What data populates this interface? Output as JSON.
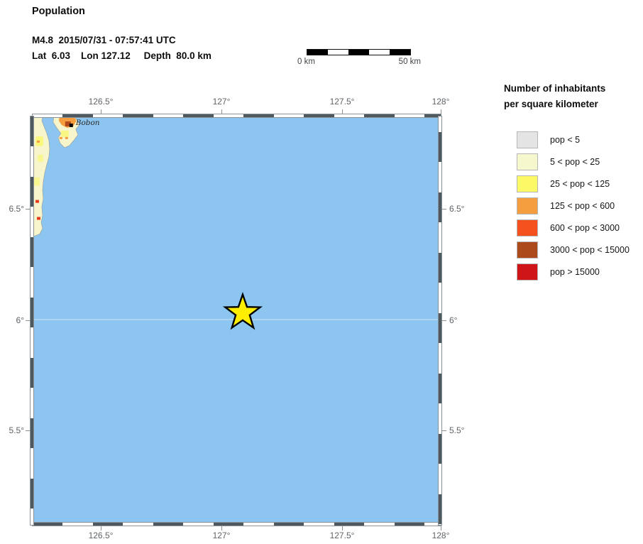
{
  "header": {
    "title": "Population",
    "event_line": "M4.8  2015/07/31 - 07:57:41 UTC",
    "location_line": "Lat  6.03    Lon 127.12     Depth  80.0 km"
  },
  "scale_bar": {
    "start_label": "0 km",
    "end_label": "50 km",
    "segment_colors": [
      "#000000",
      "#ffffff",
      "#000000",
      "#ffffff",
      "#000000"
    ]
  },
  "map": {
    "ocean_color": "#8bc5f0",
    "land_color": "#f7f5cc",
    "land_patch_yellow": "#f9f768",
    "land_patch_orange": "#f59e3f",
    "land_patch_red": "#e8391c",
    "land_patch_brown": "#b04a1a",
    "place_label": "Bobon",
    "epicenter": {
      "lat": "6.03",
      "lon": "127.12",
      "marker": "star-icon",
      "marker_fill": "#ffee00",
      "marker_outline": "#000000"
    },
    "axis": {
      "top": [
        "126.5°",
        "127°",
        "127.5°",
        "128°"
      ],
      "bottom": [
        "126.5°",
        "127°",
        "127.5°",
        "128°"
      ],
      "left": [
        "6.5°",
        "6°",
        "5.5°"
      ],
      "right": [
        "6.5°",
        "6°",
        "5.5°"
      ]
    }
  },
  "legend": {
    "title_line1": "Number of inhabitants",
    "title_line2": "per square kilometer",
    "items": [
      {
        "label": "pop < 5",
        "color": "#e4e4e4"
      },
      {
        "label": "5 < pop < 25",
        "color": "#f7f7cd"
      },
      {
        "label": "25 < pop < 125",
        "color": "#fbf966"
      },
      {
        "label": "125 < pop < 600",
        "color": "#f59e3f"
      },
      {
        "label": "600 < pop < 3000",
        "color": "#f4511e"
      },
      {
        "label": "3000 < pop < 15000",
        "color": "#ad4a1c"
      },
      {
        "label": "pop > 15000",
        "color": "#cf1517"
      }
    ]
  }
}
